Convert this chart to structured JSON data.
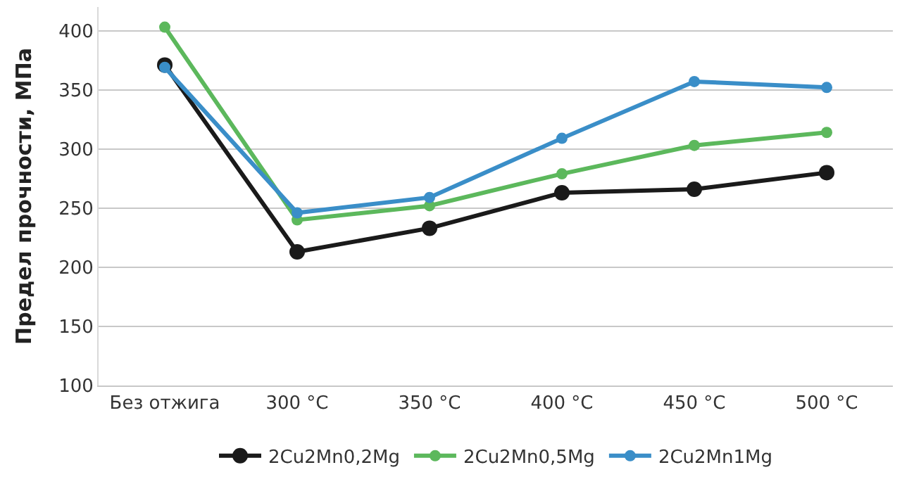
{
  "chart_data": {
    "type": "line",
    "ylabel": "Предел прочности, МПа",
    "categories": [
      "Без отжига",
      "300 °C",
      "350 °C",
      "400 °C",
      "450 °C",
      "500 °C"
    ],
    "series": [
      {
        "name": "2Cu2Mn0,2Mg",
        "color": "#1a1a1a",
        "values": [
          371,
          213,
          233,
          263,
          266,
          280
        ]
      },
      {
        "name": "2Cu2Mn0,5Mg",
        "color": "#5cb85c",
        "values": [
          403,
          240,
          252,
          279,
          303,
          314
        ]
      },
      {
        "name": "2Cu2Mn1Mg",
        "color": "#3a8ec8",
        "values": [
          369,
          246,
          259,
          309,
          357,
          352
        ]
      }
    ],
    "ylim": [
      100,
      420
    ],
    "yticks": [
      100,
      150,
      200,
      250,
      300,
      350,
      400
    ],
    "grid": "y",
    "legend": "bottom",
    "marker": "circle",
    "line_style": "solid"
  }
}
